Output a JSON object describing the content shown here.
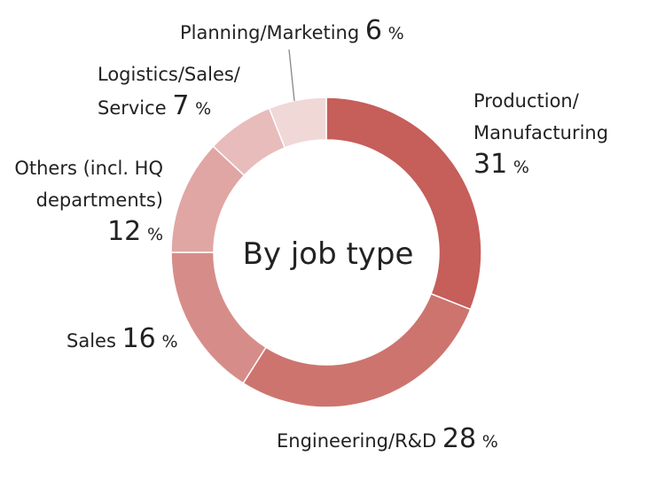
{
  "chart_data": {
    "type": "pie",
    "title": "By job type",
    "unit": "%",
    "categories": [
      "Production/ Manufacturing",
      "Engineering/R&D",
      "Sales",
      "Others (incl. HQ departments)",
      "Logistics/Sales/ Service",
      "Planning/Marketing"
    ],
    "values": [
      31,
      28,
      16,
      12,
      7,
      6
    ],
    "colors": [
      "#c65e5a",
      "#cd746f",
      "#d68d89",
      "#e0a6a3",
      "#e7bcba",
      "#f0d8d7"
    ],
    "donut": true
  },
  "labels": {
    "production_line1": "Production/",
    "production_line2": "Manufacturing",
    "production_value": "31",
    "engineering_name": "Engineering/R&D",
    "engineering_value": "28",
    "sales_name": "Sales",
    "sales_value": "16",
    "others_line1": "Others (incl. HQ",
    "others_line2": "departments)",
    "others_value": "12",
    "logistics_line1": "Logistics/Sales/",
    "logistics_line2": "Service",
    "logistics_value": "7",
    "planning_name": "Planning/Marketing",
    "planning_value": "6",
    "pct": "%"
  }
}
